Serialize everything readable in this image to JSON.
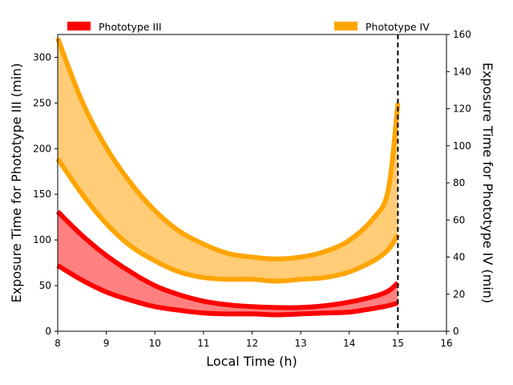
{
  "chart_data": {
    "type": "area",
    "xlabel": "Local Time (h)",
    "ylabel_left": "Exposure Time for Phototype III (min)",
    "ylabel_right": "Exposure Time for Phototype IV (min)",
    "xlim": [
      8,
      16
    ],
    "ylim_left": [
      0,
      325
    ],
    "ylim_right": [
      0,
      160
    ],
    "x_ticks": [
      8,
      9,
      10,
      11,
      12,
      13,
      14,
      15,
      16
    ],
    "y_ticks_left": [
      0,
      50,
      100,
      150,
      200,
      250,
      300
    ],
    "y_ticks_right": [
      0,
      20,
      40,
      60,
      80,
      100,
      120,
      140,
      160
    ],
    "vline_x": 15,
    "grid": false,
    "legend": [
      {
        "label": "Phototype III",
        "color": "#ff0000"
      },
      {
        "label": "Phototype IV",
        "color": "#ffa500"
      }
    ],
    "series": [
      {
        "name": "Phototype III",
        "axis": "left",
        "edge_color": "#ff0000",
        "fill_color": "#ff8080",
        "x": [
          8,
          8.5,
          9,
          9.5,
          10,
          10.5,
          11,
          11.5,
          12,
          12.5,
          13,
          13.5,
          14,
          14.5,
          14.8,
          15
        ],
        "upper": [
          131,
          105,
          83,
          65,
          50,
          40,
          33,
          29,
          27,
          26,
          26,
          28,
          32,
          38,
          44,
          53
        ],
        "lower": [
          72,
          56,
          43,
          34,
          27,
          23,
          20,
          19,
          19,
          18,
          19,
          20,
          21,
          25,
          28,
          31
        ]
      },
      {
        "name": "Phototype IV",
        "axis": "right",
        "edge_color": "#ffa500",
        "fill_color": "#ffcc77",
        "x": [
          8,
          8.5,
          9,
          9.5,
          10,
          10.5,
          11,
          11.5,
          12,
          12.5,
          13,
          13.5,
          14,
          14.5,
          14.8,
          15
        ],
        "upper": [
          158,
          124,
          99,
          80,
          65,
          54,
          47,
          42,
          40,
          39,
          40,
          43,
          49,
          61,
          76,
          123
        ],
        "lower": [
          93,
          74,
          58,
          46,
          38,
          32,
          29,
          28,
          28,
          27,
          28,
          29,
          32,
          38,
          44,
          52
        ]
      }
    ]
  }
}
